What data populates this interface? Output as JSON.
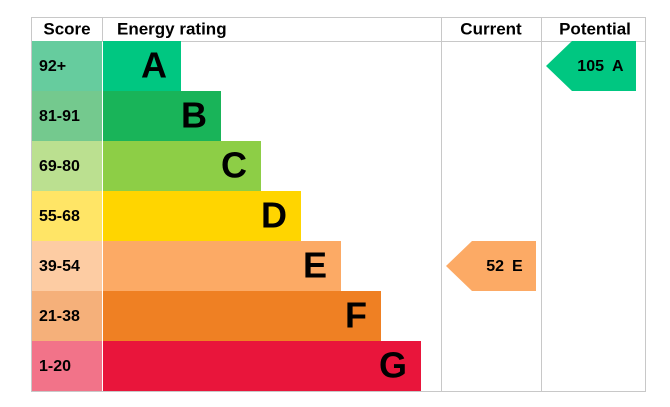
{
  "header": {
    "score": "Score",
    "rating": "Energy rating",
    "current": "Current",
    "potential": "Potential"
  },
  "bands": [
    {
      "score": "92+",
      "letter": "A",
      "color": "#00c781",
      "score_color": "#66cc9e"
    },
    {
      "score": "81-91",
      "letter": "B",
      "color": "#19b459",
      "score_color": "#74c98e"
    },
    {
      "score": "69-80",
      "letter": "C",
      "color": "#8dce46",
      "score_color": "#bbe090"
    },
    {
      "score": "55-68",
      "letter": "D",
      "color": "#ffd500",
      "score_color": "#ffe566"
    },
    {
      "score": "39-54",
      "letter": "E",
      "color": "#fcaa65",
      "score_color": "#fdcca3"
    },
    {
      "score": "21-38",
      "letter": "F",
      "color": "#ef8023",
      "score_color": "#f5b07a"
    },
    {
      "score": "1-20",
      "letter": "G",
      "color": "#e9153b",
      "score_color": "#f27389"
    }
  ],
  "current": {
    "value": 52,
    "rating": "E"
  },
  "potential": {
    "value": 105,
    "rating": "A"
  }
}
